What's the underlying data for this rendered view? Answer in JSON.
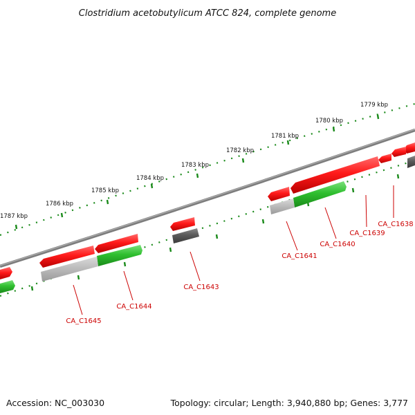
{
  "title": "Clostridium acetobutylicum ATCC 824, complete genome",
  "footer": {
    "accession": "Accession: NC_003030",
    "summary": "Topology: circular; Length: 3,940,880 bp; Genes: 3,777"
  },
  "scale_labels": [
    "1779 kbp",
    "1780 kbp",
    "1781 kbp",
    "1782 kbp",
    "1783 kbp",
    "1784 kbp",
    "1785 kbp",
    "1786 kbp",
    "1787 kbp"
  ],
  "gene_labels": [
    "CA_C1638",
    "CA_C1639",
    "CA_C1640",
    "CA_C1641",
    "CA_C1643",
    "CA_C1644",
    "CA_C1645"
  ],
  "colors": {
    "forward_gene": "#e8141a",
    "reverse_cog_green": "#2fbf2f",
    "reverse_cog_gray": "#b4b4b4",
    "dark_gray": "#5a5a5a",
    "backbone": "#7d7d7d",
    "ticks": "#1a8a1a",
    "label": "#cc0000"
  }
}
